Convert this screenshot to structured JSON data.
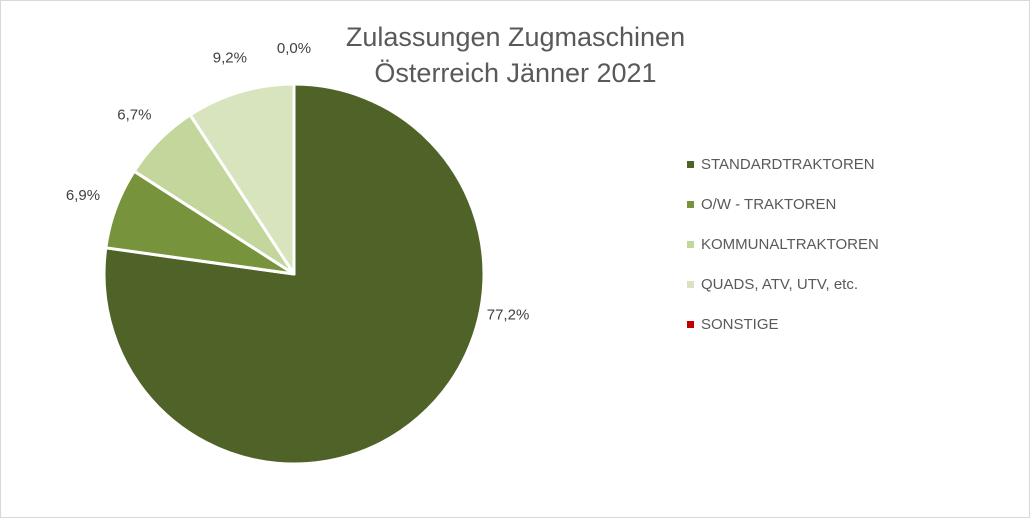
{
  "chart_data": {
    "type": "pie",
    "title": "Zulassungen Zugmaschinen Österreich Jänner 2021",
    "title_lines": [
      "Zulassungen Zugmaschinen",
      "Österreich Jänner 2021"
    ],
    "start_angle_deg": 0,
    "direction": "clockwise",
    "legend_position": "right",
    "slices": [
      {
        "label": "STANDARDTRAKTOREN",
        "value": 77.2,
        "value_label": "77,2%",
        "color": "#4f6228"
      },
      {
        "label": "O/W - TRAKTOREN",
        "value": 6.9,
        "value_label": "6,9%",
        "color": "#77933c"
      },
      {
        "label": "KOMMUNALTRAKTOREN",
        "value": 6.7,
        "value_label": "6,7%",
        "color": "#c3d69b"
      },
      {
        "label": "QUADS, ATV, UTV, etc.",
        "value": 9.2,
        "value_label": "9,2%",
        "color": "#d7e4bd"
      },
      {
        "label": "SONSTIGE",
        "value": 0.0,
        "value_label": "0,0%",
        "color": "#c00000"
      }
    ]
  }
}
